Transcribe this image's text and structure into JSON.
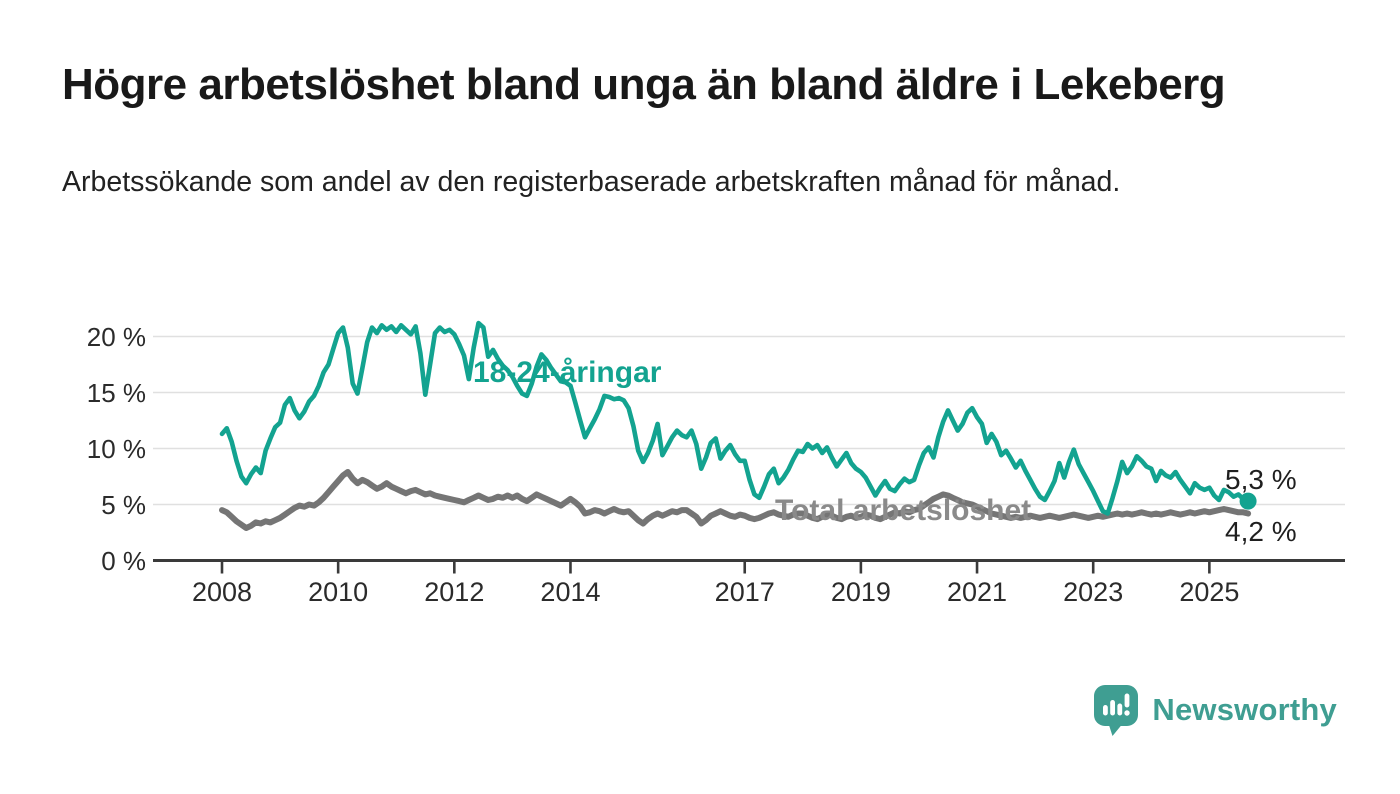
{
  "header": {
    "title": "Högre arbetslöshet bland unga än bland äldre i Lekeberg",
    "subtitle": "Arbetssökande som andel av den registerbaserade arbetskraften månad för månad."
  },
  "chart": {
    "colors": {
      "youth_line": "#13a390",
      "total_line": "#757575",
      "total_label": "#8a8a8a",
      "grid": "#e0e0e0",
      "axis": "#3a3a3a",
      "tick_text": "#2b2b2b",
      "end_label_text": "#1f1f1f"
    },
    "series_labels": {
      "youth": "18-24-åringar",
      "total": "Total arbetslöshet"
    },
    "end_labels": {
      "youth": "5,3 %",
      "total": "4,2 %"
    }
  },
  "chart_data": {
    "type": "line",
    "title": "Högre arbetslöshet bland unga än bland äldre i Lekeberg",
    "subtitle": "Arbetssökande som andel av den registerbaserade arbetskraften månad för månad.",
    "frequency": "monthly",
    "start": "2008-01",
    "end": "2025-09",
    "ylim": [
      0,
      22
    ],
    "grid": "horizontal",
    "y_ticks": [
      {
        "label": "20 %",
        "value": 20
      },
      {
        "label": "15 %",
        "value": 15
      },
      {
        "label": "10 %",
        "value": 10
      },
      {
        "label": "5 %",
        "value": 5
      },
      {
        "label": "0 %",
        "value": 0
      }
    ],
    "x_ticks": [
      {
        "label": "2008",
        "year": 2008
      },
      {
        "label": "2010",
        "year": 2010
      },
      {
        "label": "2012",
        "year": 2012
      },
      {
        "label": "2014",
        "year": 2014
      },
      {
        "label": "2017",
        "year": 2017
      },
      {
        "label": "2019",
        "year": 2019
      },
      {
        "label": "2021",
        "year": 2021
      },
      {
        "label": "2023",
        "year": 2023
      },
      {
        "label": "2025",
        "year": 2025
      }
    ],
    "annotations": [
      {
        "text": "5,3 %",
        "series": "18-24-åringar",
        "position": "line-end"
      },
      {
        "text": "4,2 %",
        "series": "Total arbetslöshet",
        "position": "line-end"
      }
    ],
    "series": [
      {
        "name": "18-24-åringar",
        "color": "#13a390",
        "last_value_label": "5,3 %",
        "values": [
          11.3,
          11.8,
          10.6,
          8.9,
          7.5,
          6.9,
          7.7,
          8.3,
          7.8,
          9.8,
          10.9,
          11.9,
          12.3,
          13.9,
          14.5,
          13.4,
          12.7,
          13.3,
          14.2,
          14.7,
          15.6,
          16.8,
          17.5,
          18.9,
          20.3,
          20.8,
          19.0,
          15.8,
          14.9,
          17.2,
          19.5,
          20.8,
          20.3,
          21.0,
          20.6,
          20.9,
          20.4,
          21.0,
          20.6,
          20.2,
          20.9,
          18.5,
          14.8,
          17.5,
          20.3,
          20.8,
          20.4,
          20.6,
          20.2,
          19.3,
          18.3,
          16.2,
          19.0,
          21.2,
          20.8,
          18.2,
          18.8,
          18.0,
          17.4,
          17.0,
          16.4,
          15.6,
          14.9,
          14.7,
          15.8,
          17.3,
          18.4,
          17.9,
          17.2,
          16.6,
          16.0,
          15.9,
          15.6,
          14.1,
          12.5,
          11.0,
          11.8,
          12.6,
          13.5,
          14.7,
          14.6,
          14.4,
          14.5,
          14.3,
          13.6,
          12.0,
          9.8,
          8.8,
          9.6,
          10.7,
          12.2,
          9.4,
          10.2,
          11.0,
          11.6,
          11.2,
          11.0,
          11.6,
          10.4,
          8.2,
          9.2,
          10.5,
          10.9,
          9.1,
          9.8,
          10.3,
          9.5,
          8.9,
          8.9,
          7.2,
          5.9,
          5.6,
          6.6,
          7.7,
          8.2,
          6.9,
          7.4,
          8.1,
          9.0,
          9.8,
          9.7,
          10.4,
          10.0,
          10.3,
          9.6,
          10.1,
          9.2,
          8.4,
          9.0,
          9.6,
          8.7,
          8.2,
          7.9,
          7.4,
          6.6,
          5.8,
          6.5,
          7.1,
          6.4,
          6.2,
          6.8,
          7.3,
          7.0,
          7.2,
          8.5,
          9.6,
          10.1,
          9.2,
          11.0,
          12.4,
          13.4,
          12.5,
          11.6,
          12.2,
          13.2,
          13.6,
          12.8,
          12.2,
          10.5,
          11.3,
          10.6,
          9.4,
          9.8,
          9.1,
          8.3,
          8.9,
          8.0,
          7.2,
          6.4,
          5.7,
          5.4,
          6.2,
          7.1,
          8.7,
          7.4,
          8.8,
          9.9,
          8.6,
          7.8,
          7.0,
          6.2,
          5.3,
          4.4,
          4.2,
          5.6,
          7.1,
          8.8,
          7.8,
          8.4,
          9.3,
          8.9,
          8.4,
          8.2,
          7.1,
          8.0,
          7.6,
          7.4,
          7.9,
          7.2,
          6.6,
          6.0,
          6.9,
          6.5,
          6.3,
          6.5,
          5.8,
          5.4,
          6.3,
          6.1,
          5.7,
          5.9,
          5.5,
          5.3
        ]
      },
      {
        "name": "Total arbetslöshet",
        "color": "#757575",
        "last_value_label": "4,2 %",
        "values": [
          4.5,
          4.3,
          3.9,
          3.5,
          3.2,
          2.9,
          3.1,
          3.4,
          3.3,
          3.5,
          3.4,
          3.6,
          3.8,
          4.1,
          4.4,
          4.7,
          4.9,
          4.8,
          5.0,
          4.9,
          5.2,
          5.6,
          6.1,
          6.6,
          7.1,
          7.6,
          7.9,
          7.3,
          6.9,
          7.2,
          7.0,
          6.7,
          6.4,
          6.6,
          6.9,
          6.6,
          6.4,
          6.2,
          6.0,
          6.2,
          6.3,
          6.1,
          5.9,
          6.0,
          5.8,
          5.7,
          5.6,
          5.5,
          5.4,
          5.3,
          5.2,
          5.4,
          5.6,
          5.8,
          5.6,
          5.4,
          5.5,
          5.7,
          5.6,
          5.8,
          5.6,
          5.8,
          5.5,
          5.3,
          5.6,
          5.9,
          5.7,
          5.5,
          5.3,
          5.1,
          4.9,
          5.2,
          5.5,
          5.2,
          4.8,
          4.2,
          4.3,
          4.5,
          4.4,
          4.2,
          4.4,
          4.6,
          4.4,
          4.3,
          4.4,
          4.0,
          3.6,
          3.3,
          3.7,
          4.0,
          4.2,
          4.0,
          4.2,
          4.4,
          4.3,
          4.5,
          4.5,
          4.2,
          3.9,
          3.3,
          3.6,
          4.0,
          4.2,
          4.4,
          4.2,
          4.0,
          3.9,
          4.1,
          4.0,
          3.8,
          3.7,
          3.8,
          4.0,
          4.2,
          4.3,
          4.1,
          4.0,
          3.9,
          4.1,
          4.2,
          4.2,
          4.0,
          3.8,
          3.7,
          3.9,
          4.1,
          4.0,
          3.8,
          3.7,
          3.9,
          4.0,
          3.8,
          3.9,
          4.1,
          4.0,
          3.8,
          3.7,
          3.9,
          4.1,
          4.3,
          4.2,
          4.4,
          4.3,
          4.5,
          4.6,
          4.9,
          5.2,
          5.5,
          5.7,
          5.9,
          5.8,
          5.6,
          5.4,
          5.2,
          5.1,
          5.0,
          4.8,
          4.6,
          4.4,
          4.2,
          4.1,
          4.0,
          3.9,
          3.8,
          3.9,
          3.8,
          3.9,
          4.0,
          3.9,
          3.8,
          3.9,
          4.0,
          3.9,
          3.8,
          3.9,
          4.0,
          4.1,
          4.0,
          3.9,
          3.8,
          3.9,
          4.0,
          3.9,
          4.0,
          4.1,
          4.2,
          4.1,
          4.2,
          4.1,
          4.2,
          4.3,
          4.2,
          4.1,
          4.2,
          4.1,
          4.2,
          4.3,
          4.2,
          4.1,
          4.2,
          4.3,
          4.2,
          4.3,
          4.4,
          4.3,
          4.4,
          4.5,
          4.6,
          4.5,
          4.4,
          4.3,
          4.3,
          4.2
        ]
      }
    ]
  },
  "branding": {
    "logo_text": "Newsworthy",
    "logo_color": "#3f9e92"
  }
}
